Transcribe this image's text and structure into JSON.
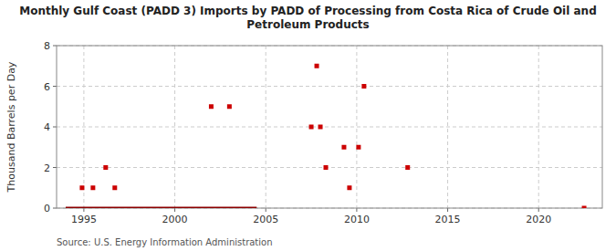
{
  "chart_data": {
    "type": "scatter",
    "title": "Monthly Gulf Coast (PADD 3) Imports by PADD of Processing from Costa Rica of Crude Oil and\nPetroleum Products",
    "ylabel": "Thousand Barrels per Day",
    "annotations": [
      "Source: U.S. Energy Information Administration"
    ],
    "xlim": [
      1993.5,
      2023.5
    ],
    "ylim": [
      0,
      8
    ],
    "xticks": [
      1995,
      2000,
      2005,
      2010,
      2015,
      2020
    ],
    "yticks": [
      0,
      2,
      4,
      6,
      8
    ],
    "grid": true,
    "series": [
      {
        "type": "line",
        "color": "#8b0000",
        "line_style": "solid",
        "x": [
          1994.0,
          2004.5
        ],
        "values": [
          0,
          0
        ]
      },
      {
        "type": "scatter",
        "color": "#cc0000",
        "marker": "square",
        "x": [
          1994.9,
          1995.5,
          1996.2,
          1996.7,
          2002.0,
          2003.0,
          2007.5,
          2008.0,
          2007.8,
          2008.3,
          2009.3,
          2009.6,
          2010.1,
          2010.4,
          2012.8,
          2022.5
        ],
        "values": [
          1,
          1,
          2,
          1,
          5,
          5,
          4,
          4,
          7,
          2,
          3,
          1,
          3,
          6,
          2,
          0
        ]
      }
    ]
  }
}
